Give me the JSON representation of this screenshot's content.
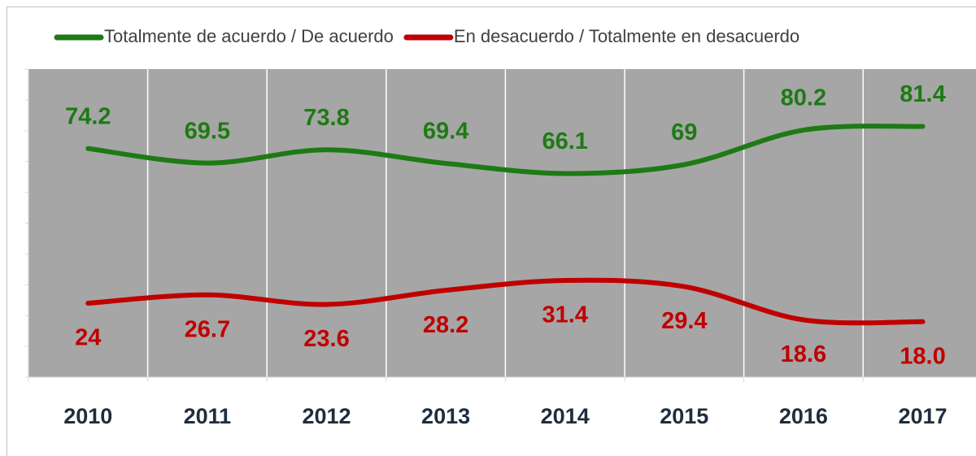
{
  "chart_data": {
    "type": "line",
    "categories": [
      "2010",
      "2011",
      "2012",
      "2013",
      "2014",
      "2015",
      "2016",
      "2017"
    ],
    "series": [
      {
        "name": "Totalmente de acuerdo / De acuerdo",
        "color": "#1e7a14",
        "values": [
          74.2,
          69.5,
          73.8,
          69.4,
          66.1,
          69,
          80.2,
          81.4
        ]
      },
      {
        "name": "En desacuerdo / Totalmente en desacuerdo",
        "color": "#c00000",
        "values": [
          24,
          26.7,
          23.6,
          28.2,
          31.4,
          29.4,
          18.6,
          18.0
        ],
        "value_labels": [
          "24",
          "26.7",
          "23.6",
          "28.2",
          "31.4",
          "29.4",
          "18.6",
          "18.0"
        ]
      }
    ],
    "ylim": [
      0,
      100
    ],
    "yticks": [
      0,
      10,
      20,
      30,
      40,
      50,
      60,
      70,
      80,
      90,
      100
    ],
    "legend": "top",
    "background": "#a6a6a6",
    "grid": true
  }
}
